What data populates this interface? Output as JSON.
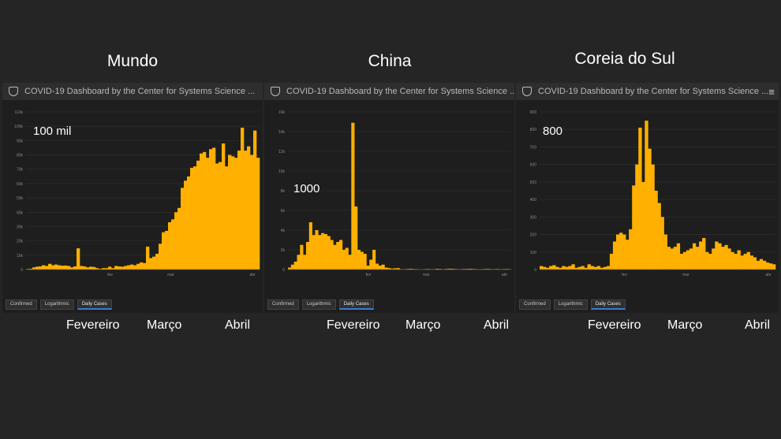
{
  "titles": [
    "Mundo",
    "China",
    "Coreia do Sul"
  ],
  "header_text": "COVID-19 Dashboard by the Center for Systems Science ...",
  "menu_glyph": "≡",
  "tabs": [
    "Confirmed",
    "Logarithmic",
    "Daily Cases"
  ],
  "active_tab": "Daily Cases",
  "month_labels": [
    "Fevereiro",
    "Março",
    "Abril"
  ],
  "colors": {
    "bar": "#FFB000",
    "background": "#252525",
    "panel": "#1e1e1e"
  },
  "chart_data": [
    {
      "type": "bar",
      "title": "Mundo",
      "annotation": "100 mil",
      "ylim": [
        0,
        110000
      ],
      "yticks": [
        "0",
        "10k",
        "20k",
        "30k",
        "40k",
        "50k",
        "60k",
        "70k",
        "80k",
        "90k",
        "100k",
        "110k"
      ],
      "xticks": [
        "fev",
        "mar",
        "abr"
      ],
      "values": [
        400,
        600,
        1500,
        2000,
        2200,
        3000,
        2500,
        4000,
        3000,
        3500,
        3000,
        2700,
        2800,
        2500,
        1500,
        2200,
        14800,
        2500,
        2200,
        1500,
        2000,
        1800,
        1000,
        500,
        1000,
        1000,
        2000,
        1000,
        2500,
        2200,
        2000,
        2500,
        3000,
        3500,
        3000,
        4000,
        5000,
        4500,
        16000,
        8000,
        9000,
        11000,
        18000,
        26000,
        27000,
        33000,
        35000,
        40000,
        43000,
        57000,
        62000,
        65000,
        71000,
        72000,
        76000,
        81000,
        82000,
        78000,
        84000,
        85000,
        74000,
        75000,
        88000,
        72000,
        80000,
        79000,
        78000,
        83000,
        99000,
        83000,
        86000,
        80000,
        97000,
        78000
      ]
    },
    {
      "type": "bar",
      "title": "China",
      "annotation": "1000",
      "ylim": [
        0,
        16000
      ],
      "yticks": [
        "0",
        "2k",
        "4k",
        "6k",
        "8k",
        "10k",
        "12k",
        "14k",
        "16k"
      ],
      "xticks": [
        "fev",
        "mar",
        "abr"
      ],
      "values": [
        200,
        500,
        800,
        1500,
        2500,
        1500,
        2800,
        4800,
        3500,
        4000,
        3500,
        3700,
        3600,
        3400,
        3000,
        2500,
        2800,
        3000,
        2000,
        2200,
        1500,
        14900,
        6400,
        2000,
        1800,
        1600,
        400,
        1000,
        2000,
        600,
        400,
        500,
        200,
        150,
        100,
        130,
        150,
        50,
        40,
        60,
        80,
        60,
        50,
        30,
        20,
        50,
        60,
        40,
        50,
        80,
        60,
        40,
        70,
        90,
        80,
        60,
        40,
        50,
        60,
        70,
        80,
        60,
        50,
        40,
        50,
        60,
        70,
        40,
        50,
        60,
        40,
        50,
        60,
        40
      ]
    },
    {
      "type": "bar",
      "title": "Coreia do Sul",
      "annotation": "800",
      "ylim": [
        0,
        900
      ],
      "yticks": [
        "0",
        "100",
        "200",
        "300",
        "400",
        "500",
        "600",
        "700",
        "800",
        "900"
      ],
      "xticks": [
        "fev",
        "mar",
        "abr"
      ],
      "values": [
        20,
        15,
        10,
        20,
        25,
        15,
        10,
        20,
        15,
        20,
        30,
        10,
        15,
        20,
        10,
        30,
        20,
        15,
        20,
        10,
        15,
        20,
        90,
        160,
        200,
        210,
        200,
        170,
        230,
        480,
        600,
        810,
        500,
        850,
        690,
        600,
        450,
        380,
        300,
        200,
        130,
        120,
        130,
        150,
        90,
        100,
        110,
        120,
        150,
        130,
        160,
        180,
        100,
        90,
        120,
        160,
        150,
        130,
        140,
        120,
        100,
        90,
        110,
        80,
        90,
        100,
        80,
        70,
        50,
        60,
        50,
        40,
        35,
        30
      ]
    }
  ]
}
